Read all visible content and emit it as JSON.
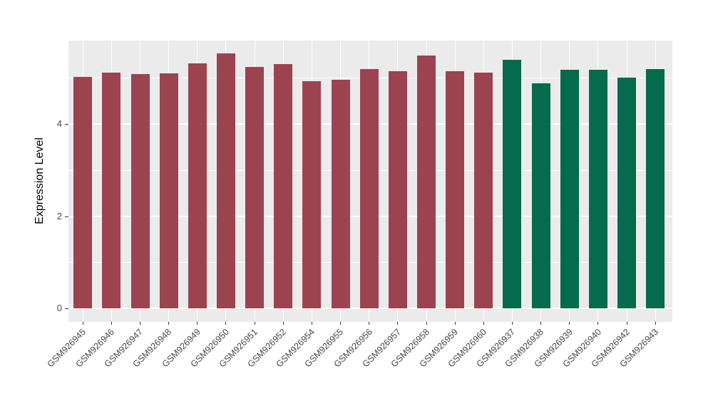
{
  "chart_data": {
    "type": "bar",
    "title": "",
    "xlabel": "",
    "ylabel": "Expression Level",
    "yticks": [
      0,
      2,
      4
    ],
    "ylim": [
      -0.3,
      5.8
    ],
    "grid": "on",
    "legend": "none",
    "categories": [
      "GSM926945",
      "GSM926946",
      "GSM926947",
      "GSM926948",
      "GSM926949",
      "GSM926950",
      "GSM926951",
      "GSM926952",
      "GSM926954",
      "GSM926955",
      "GSM926956",
      "GSM926957",
      "GSM926958",
      "GSM926959",
      "GSM926960",
      "GSM926937",
      "GSM926938",
      "GSM926939",
      "GSM926940",
      "GSM926942",
      "GSM926943"
    ],
    "values": [
      5.02,
      5.11,
      5.08,
      5.1,
      5.31,
      5.53,
      5.23,
      5.3,
      4.92,
      4.96,
      5.19,
      5.14,
      5.49,
      5.14,
      5.11,
      5.39,
      4.88,
      5.18,
      5.18,
      5.01,
      5.19
    ],
    "bar_colors": [
      "#9C4350",
      "#9C4350",
      "#9C4350",
      "#9C4350",
      "#9C4350",
      "#9C4350",
      "#9C4350",
      "#9C4350",
      "#9C4350",
      "#9C4350",
      "#9C4350",
      "#9C4350",
      "#9C4350",
      "#9C4350",
      "#9C4350",
      "#066A4C",
      "#066A4C",
      "#066A4C",
      "#066A4C",
      "#066A4C",
      "#066A4C"
    ],
    "group_colors": {
      "maroon_group": "#9C4350",
      "green_group": "#066A4C"
    },
    "panel_background": "#EBEBEB",
    "gridline_color": "#FFFFFF",
    "tick_label_color": "#474747",
    "axis_title_color": "#000000"
  }
}
